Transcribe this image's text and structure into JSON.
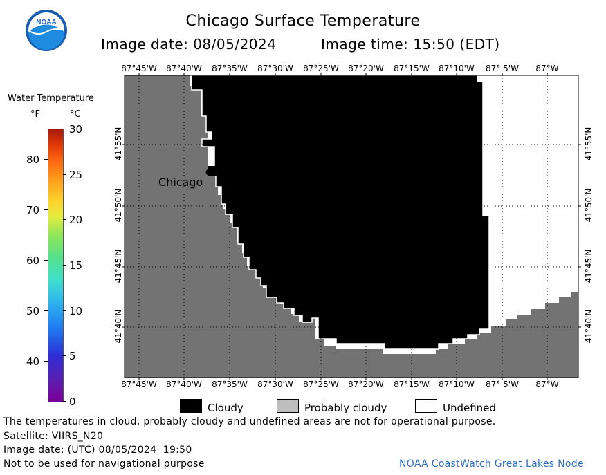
{
  "header": {
    "title": "Chicago Surface Temperature",
    "image_date": "Image date: 08/05/2024",
    "image_time": "Image time: 15:50 (EDT)",
    "logo_text": "NOAA"
  },
  "colorbar": {
    "title": "Water Temperature",
    "unit_f": "°F",
    "unit_c": "°C",
    "f_ticks": [
      "80",
      "70",
      "60",
      "50",
      "40"
    ],
    "c_ticks": [
      "30",
      "25",
      "20",
      "15",
      "10",
      "5",
      "0"
    ]
  },
  "map": {
    "city_label": "Chicago",
    "lon_labels": [
      "87°45'W",
      "87°40'W",
      "87°35'W",
      "87°30'W",
      "87°25'W",
      "87°20'W",
      "87°15'W",
      "87°10'W",
      "87° 5'W",
      "87°W"
    ],
    "lat_labels": [
      "41°55'N",
      "41°50'N",
      "41°45'N",
      "41°40'N"
    ],
    "colors": {
      "land": "#737373",
      "cloudy": "#000000",
      "probably_cloudy": "#bebebe",
      "undefined": "#ffffff"
    }
  },
  "legend": {
    "cloudy": "Cloudy",
    "probably_cloudy": "Probably cloudy",
    "undefined": "Undefined"
  },
  "footer": {
    "disclaimer": "The temperatures in cloud, probably cloudy and undefined areas are not for operational purpose.",
    "satellite": "Satellite: VIIRS_N20",
    "utc_date": "Image date: (UTC) 08/05/2024  19:50",
    "nav_warning": "Not to be used for navigational purpose",
    "credit": "NOAA CoastWatch Great Lakes Node"
  }
}
